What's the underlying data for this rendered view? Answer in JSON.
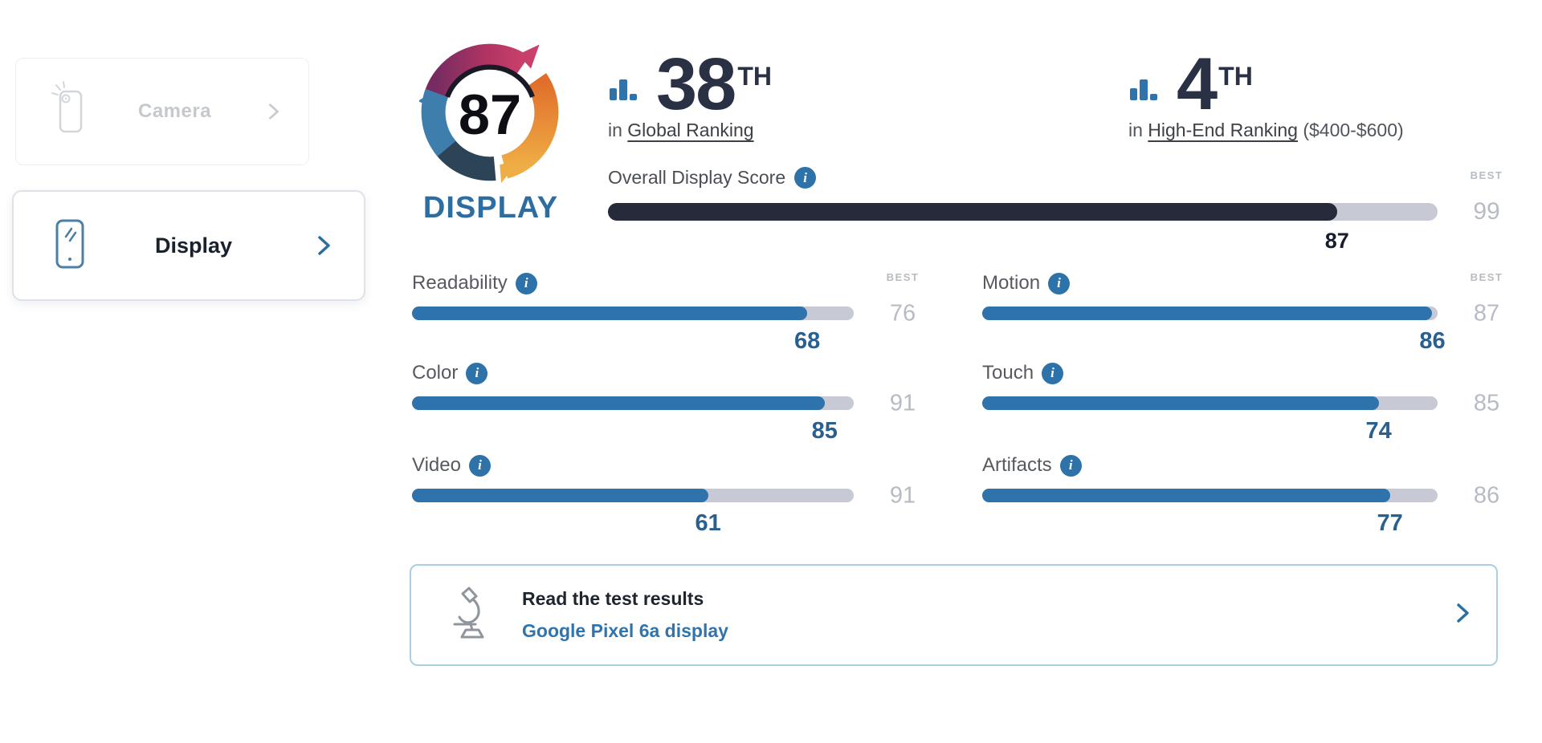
{
  "sidebar": {
    "camera": {
      "label": "Camera"
    },
    "display": {
      "label": "Display"
    }
  },
  "score_badge": {
    "score": "87",
    "product": "DISPLAY"
  },
  "rankings": [
    {
      "rank": "38",
      "ordinal": "TH",
      "prefix": "in ",
      "category": "Global Ranking",
      "suffix_note": ""
    },
    {
      "rank": "4",
      "ordinal": "TH",
      "prefix": "in ",
      "category": "High-End Ranking",
      "suffix_note": " ($400-$600)"
    }
  ],
  "overall": {
    "label": "Overall Display Score",
    "value": 87,
    "best": 99,
    "best_caption": "BEST",
    "info_glyph": "i"
  },
  "metrics": [
    {
      "label": "Readability",
      "value": 68,
      "best": 76,
      "best_caption": "BEST"
    },
    {
      "label": "Color",
      "value": 85,
      "best": 91
    },
    {
      "label": "Video",
      "value": 61,
      "best": 91
    },
    {
      "label": "Motion",
      "value": 86,
      "best": 87,
      "best_caption": "BEST"
    },
    {
      "label": "Touch",
      "value": 74,
      "best": 85
    },
    {
      "label": "Artifacts",
      "value": 77,
      "best": 86
    }
  ],
  "cta": {
    "title": "Read the test results",
    "link_label": "Google Pixel 6a display"
  },
  "colors": {
    "accent_blue": "#2e73ac",
    "bar_track": "#c7c9d4",
    "overall_fill": "#262a3a",
    "value_text": "#2a6090",
    "best_text": "#b7bbc3",
    "dark_text": "#2b3145",
    "wordmark_blue": "#2e6da0",
    "cta_border": "#a9cfe4",
    "badge_magenta": "#c23a67",
    "badge_purple": "#762c60",
    "badge_orange": "#e8822e",
    "badge_steel_blue": "#3d7ead",
    "badge_dark_slate": "#2c4456"
  }
}
